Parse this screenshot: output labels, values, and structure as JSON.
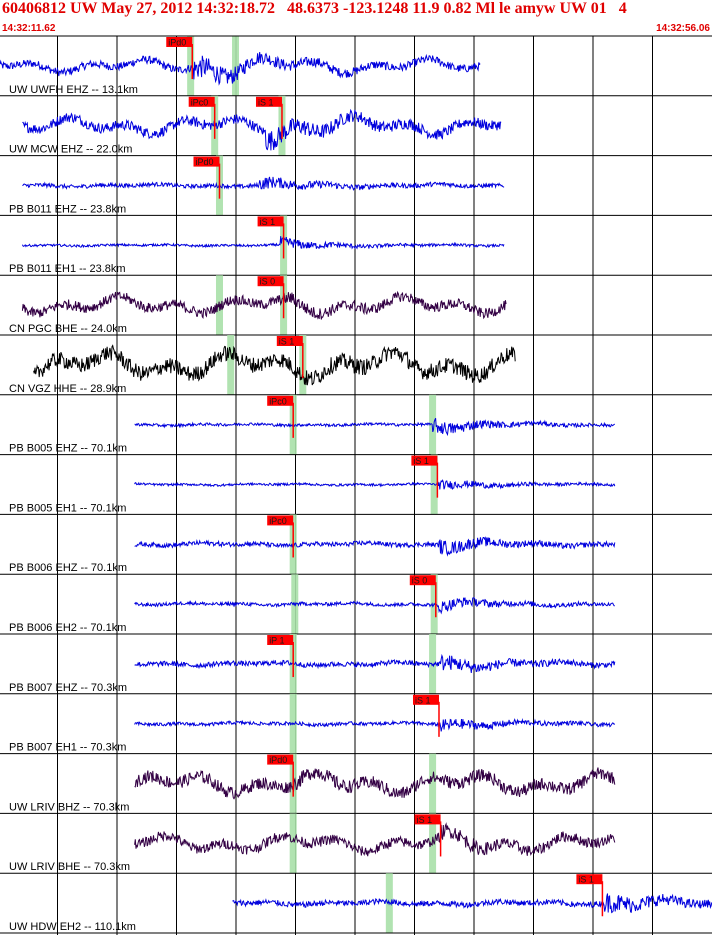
{
  "header": {
    "title": "60406812 UW May 27, 2012 14:32:18.72   48.6373 -123.1248 11.9 0.82 Ml le amyw UW 01   4",
    "start_time": "14:32:11.62",
    "end_time": "14:32:56.06"
  },
  "colors": {
    "header_text": "#e00000",
    "pick_flag": "#ff0000",
    "arrival_band": "#a8e0a8",
    "grid": "#000000"
  },
  "chart_data": {
    "type": "seismogram",
    "time_range": [
      "14:32:11.62",
      "14:32:56.06"
    ],
    "time_span_s": 44.44,
    "minute_ticks": 12,
    "traces": [
      {
        "label": "UW UWFH EHZ -- 13.1km",
        "color": "#0000dd",
        "start_s": 0.0,
        "end_s": 30.0,
        "amp": 0.35,
        "burst_s": 12.0,
        "burst_gain": 3.2,
        "bands_s": [
          11.9,
          14.7
        ],
        "picks": [
          {
            "label": "iPd0",
            "t": 12.0
          }
        ]
      },
      {
        "label": "UW MCW EHZ -- 22.0km",
        "color": "#0000dd",
        "start_s": 1.4,
        "end_s": 31.3,
        "amp": 0.45,
        "burst_s": 16.6,
        "burst_gain": 2.2,
        "bands_s": [
          13.4,
          17.6
        ],
        "picks": [
          {
            "label": "iPc0",
            "t": 13.4
          },
          {
            "label": "iS 1",
            "t": 17.6
          }
        ]
      },
      {
        "label": "PB B011 EHZ -- 23.8km",
        "color": "#0000dd",
        "start_s": 1.4,
        "end_s": 31.5,
        "amp": 0.18,
        "burst_s": 16.2,
        "burst_gain": 3.4,
        "bands_s": [
          13.7
        ],
        "picks": [
          {
            "label": "iPd0",
            "t": 13.7
          }
        ]
      },
      {
        "label": "PB B011 EH1 -- 23.8km",
        "color": "#0000dd",
        "start_s": 1.4,
        "end_s": 31.5,
        "amp": 0.1,
        "burst_s": 17.5,
        "burst_gain": 5.0,
        "bands_s": [
          17.7
        ],
        "picks": [
          {
            "label": "iS 1",
            "t": 17.7
          }
        ]
      },
      {
        "label": "CN PGC BHE -- 24.0km",
        "color": "#330044",
        "start_s": 1.4,
        "end_s": 31.6,
        "amp": 0.45,
        "burst_s": 18.0,
        "burst_gain": 1.3,
        "bands_s": [
          13.7,
          17.7
        ],
        "picks": [
          {
            "label": "iS 0",
            "t": 17.7
          }
        ]
      },
      {
        "label": "CN VGZ HHE -- 28.9km",
        "color": "#000000",
        "start_s": 2.1,
        "end_s": 32.2,
        "amp": 0.7,
        "burst_s": 18.9,
        "burst_gain": 1.1,
        "bands_s": [
          14.4,
          18.9
        ],
        "picks": [
          {
            "label": "iS 1",
            "t": 18.9
          }
        ]
      },
      {
        "label": "PB B005 EHZ -- 70.1km",
        "color": "#0000dd",
        "start_s": 8.4,
        "end_s": 38.4,
        "amp": 0.12,
        "burst_s": 27.0,
        "burst_gain": 6.0,
        "bands_s": [
          18.3,
          27.0
        ],
        "picks": [
          {
            "label": "iPc0",
            "t": 18.3
          }
        ]
      },
      {
        "label": "PB B005 EH1 -- 70.1km",
        "color": "#0000dd",
        "start_s": 8.4,
        "end_s": 38.4,
        "amp": 0.1,
        "burst_s": 27.3,
        "burst_gain": 4.5,
        "bands_s": [
          27.1
        ],
        "picks": [
          {
            "label": "iS 1",
            "t": 27.3
          }
        ]
      },
      {
        "label": "PB B006 EHZ -- 70.1km",
        "color": "#0000dd",
        "start_s": 8.4,
        "end_s": 38.4,
        "amp": 0.2,
        "burst_s": 27.4,
        "burst_gain": 3.5,
        "bands_s": [
          18.3
        ],
        "picks": [
          {
            "label": "iPc0",
            "t": 18.3
          }
        ]
      },
      {
        "label": "PB B006 EH2 -- 70.1km",
        "color": "#0000dd",
        "start_s": 8.4,
        "end_s": 38.4,
        "amp": 0.15,
        "burst_s": 27.2,
        "burst_gain": 4.0,
        "bands_s": [
          18.4,
          27.1
        ],
        "picks": [
          {
            "label": "iS 0",
            "t": 27.2
          }
        ]
      },
      {
        "label": "PB B007 EHZ -- 70.3km",
        "color": "#0000dd",
        "start_s": 8.4,
        "end_s": 38.4,
        "amp": 0.22,
        "burst_s": 27.5,
        "burst_gain": 3.5,
        "bands_s": [
          18.3,
          27.0
        ],
        "picks": [
          {
            "label": "iP 1",
            "t": 18.3
          }
        ]
      },
      {
        "label": "PB B007 EH1 -- 70.3km",
        "color": "#0000dd",
        "start_s": 8.4,
        "end_s": 38.4,
        "amp": 0.15,
        "burst_s": 27.4,
        "burst_gain": 4.0,
        "bands_s": [
          18.3
        ],
        "picks": [
          {
            "label": "iS 1",
            "t": 27.4
          }
        ]
      },
      {
        "label": "UW LRIV BHZ -- 70.3km",
        "color": "#330044",
        "start_s": 8.4,
        "end_s": 38.4,
        "amp": 0.55,
        "burst_s": 18.3,
        "burst_gain": 1.2,
        "bands_s": [
          18.3,
          27.0
        ],
        "picks": [
          {
            "label": "iPd0",
            "t": 18.3
          }
        ]
      },
      {
        "label": "UW LRIV BHE -- 70.3km",
        "color": "#330044",
        "start_s": 8.4,
        "end_s": 38.4,
        "amp": 0.45,
        "burst_s": 27.5,
        "burst_gain": 1.6,
        "bands_s": [
          18.3,
          27.0
        ],
        "picks": [
          {
            "label": "iS 1",
            "t": 27.5
          }
        ]
      },
      {
        "label": "UW HDW EH2 -- 110.1km",
        "color": "#0000dd",
        "start_s": 14.5,
        "end_s": 44.44,
        "amp": 0.25,
        "burst_s": 37.7,
        "burst_gain": 4.0,
        "bands_s": [
          24.3
        ],
        "picks": [
          {
            "label": "iS 1",
            "t": 37.6
          }
        ]
      }
    ]
  }
}
